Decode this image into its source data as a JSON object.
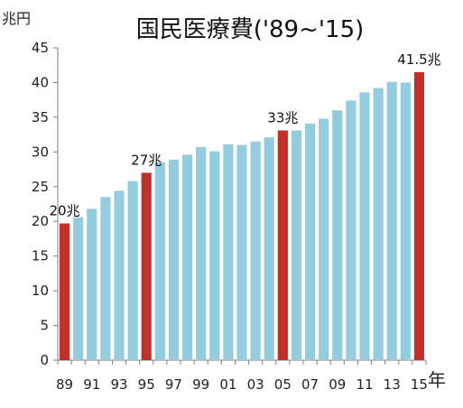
{
  "chart_data": {
    "type": "bar",
    "title": "国民医療費('89~'15)",
    "ylabel": "兆円",
    "xlabel": "年",
    "ylim": [
      0,
      45
    ],
    "yticks": [
      0,
      5,
      10,
      15,
      20,
      25,
      30,
      35,
      40,
      45
    ],
    "grid": false,
    "legend": "none",
    "categories": [
      "89",
      "90",
      "91",
      "92",
      "93",
      "94",
      "95",
      "96",
      "97",
      "98",
      "99",
      "00",
      "01",
      "02",
      "03",
      "04",
      "05",
      "06",
      "07",
      "08",
      "09",
      "10",
      "11",
      "12",
      "13",
      "14",
      "15"
    ],
    "xtick_labels": [
      "89",
      "91",
      "93",
      "95",
      "97",
      "99",
      "01",
      "03",
      "05",
      "07",
      "09",
      "11",
      "13",
      "15"
    ],
    "values": [
      19.7,
      20.6,
      21.8,
      23.5,
      24.4,
      25.8,
      27.0,
      28.5,
      28.9,
      29.6,
      30.7,
      30.1,
      31.1,
      31.0,
      31.5,
      32.1,
      33.1,
      33.1,
      34.1,
      34.8,
      36.0,
      37.4,
      38.6,
      39.2,
      40.1,
      40.0,
      41.5
    ],
    "highlight_categories": [
      "89",
      "95",
      "05",
      "15"
    ],
    "colors": {
      "bar": "#93cddd",
      "highlight": "#c0312b"
    },
    "annotations": [
      {
        "category": "89",
        "text": "20兆"
      },
      {
        "category": "95",
        "text": "27兆"
      },
      {
        "category": "05",
        "text": "33兆"
      },
      {
        "category": "15",
        "text": "41.5兆"
      }
    ]
  }
}
